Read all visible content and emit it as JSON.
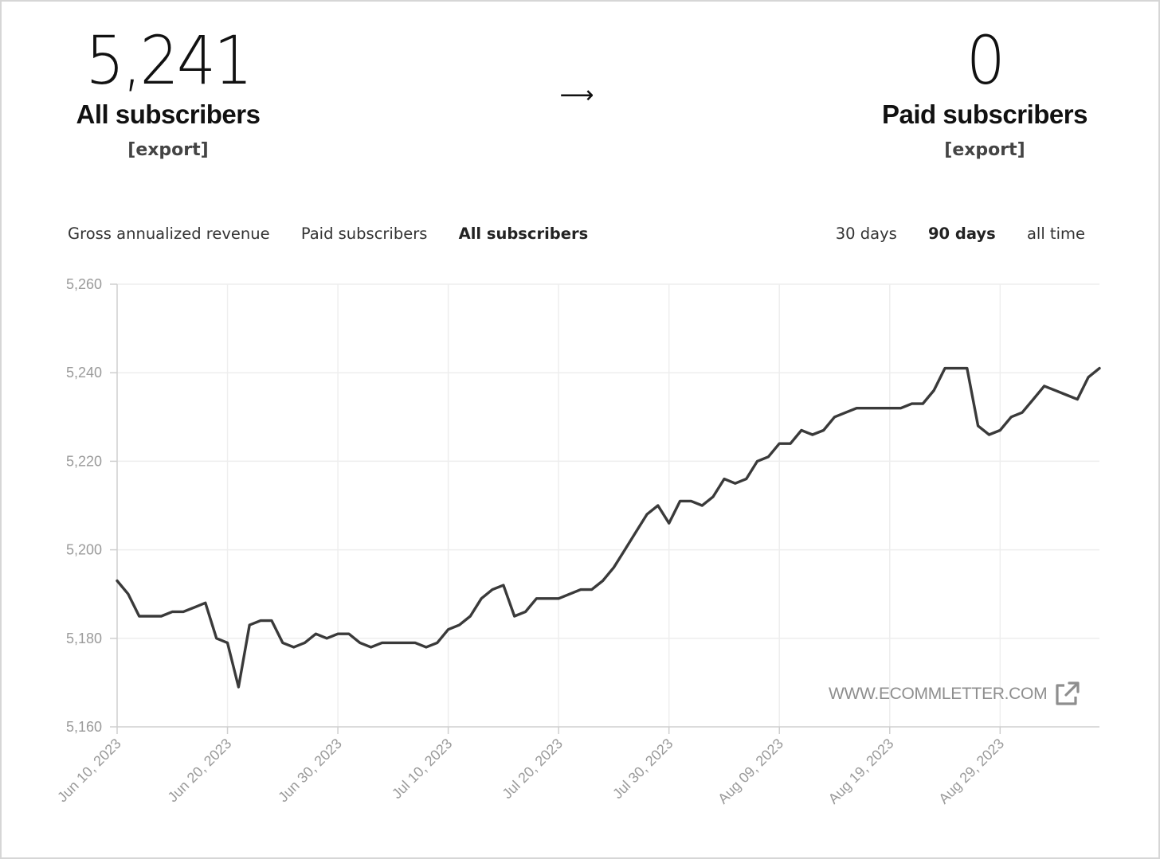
{
  "stats": {
    "all": {
      "value": "5,241",
      "label": "All subscribers",
      "export": "[export]"
    },
    "arrow": "⟶",
    "paid": {
      "value": "0",
      "label": "Paid subscribers",
      "export": "[export]"
    }
  },
  "metric_tabs": [
    {
      "label": "Gross annualized revenue",
      "active": false
    },
    {
      "label": "Paid subscribers",
      "active": false
    },
    {
      "label": "All subscribers",
      "active": true
    }
  ],
  "range_tabs": [
    {
      "label": "30 days",
      "active": false
    },
    {
      "label": "90 days",
      "active": true
    },
    {
      "label": "all time",
      "active": false
    }
  ],
  "watermark": {
    "text": "WWW.ECOMMLETTER.COM",
    "icon": "external-link-icon"
  },
  "colors": {
    "line": "#3a3a3a",
    "grid": "#eeeeee",
    "axis": "#cfcfcf",
    "tick": "#9a9a9a"
  },
  "chart_data": {
    "type": "line",
    "x_start": "2023-06-10",
    "x_end": "2023-09-07",
    "xticks": [
      "Jun 10, 2023",
      "Jun 20, 2023",
      "Jun 30, 2023",
      "Jul 10, 2023",
      "Jul 20, 2023",
      "Jul 30, 2023",
      "Aug 09, 2023",
      "Aug 19, 2023",
      "Aug 29, 2023"
    ],
    "yticks": [
      "5,160",
      "5,180",
      "5,200",
      "5,220",
      "5,240",
      "5,260"
    ],
    "ylim": [
      5160,
      5260
    ],
    "grid": true,
    "series": [
      {
        "values": [
          5193,
          5190,
          5185,
          5185,
          5185,
          5186,
          5186,
          5187,
          5188,
          5180,
          5179,
          5169,
          5183,
          5184,
          5184,
          5179,
          5178,
          5179,
          5181,
          5180,
          5181,
          5181,
          5179,
          5178,
          5179,
          5179,
          5179,
          5179,
          5178,
          5179,
          5182,
          5183,
          5185,
          5189,
          5191,
          5192,
          5185,
          5186,
          5189,
          5189,
          5189,
          5190,
          5191,
          5191,
          5193,
          5196,
          5200,
          5204,
          5208,
          5210,
          5206,
          5211,
          5211,
          5210,
          5212,
          5216,
          5215,
          5216,
          5220,
          5221,
          5224,
          5224,
          5227,
          5226,
          5227,
          5230,
          5231,
          5232,
          5232,
          5232,
          5232,
          5232,
          5233,
          5233,
          5236,
          5241,
          5241,
          5241,
          5228,
          5226,
          5227,
          5230,
          5231,
          5234,
          5237,
          5236,
          5235,
          5234,
          5239,
          5241
        ]
      }
    ]
  }
}
